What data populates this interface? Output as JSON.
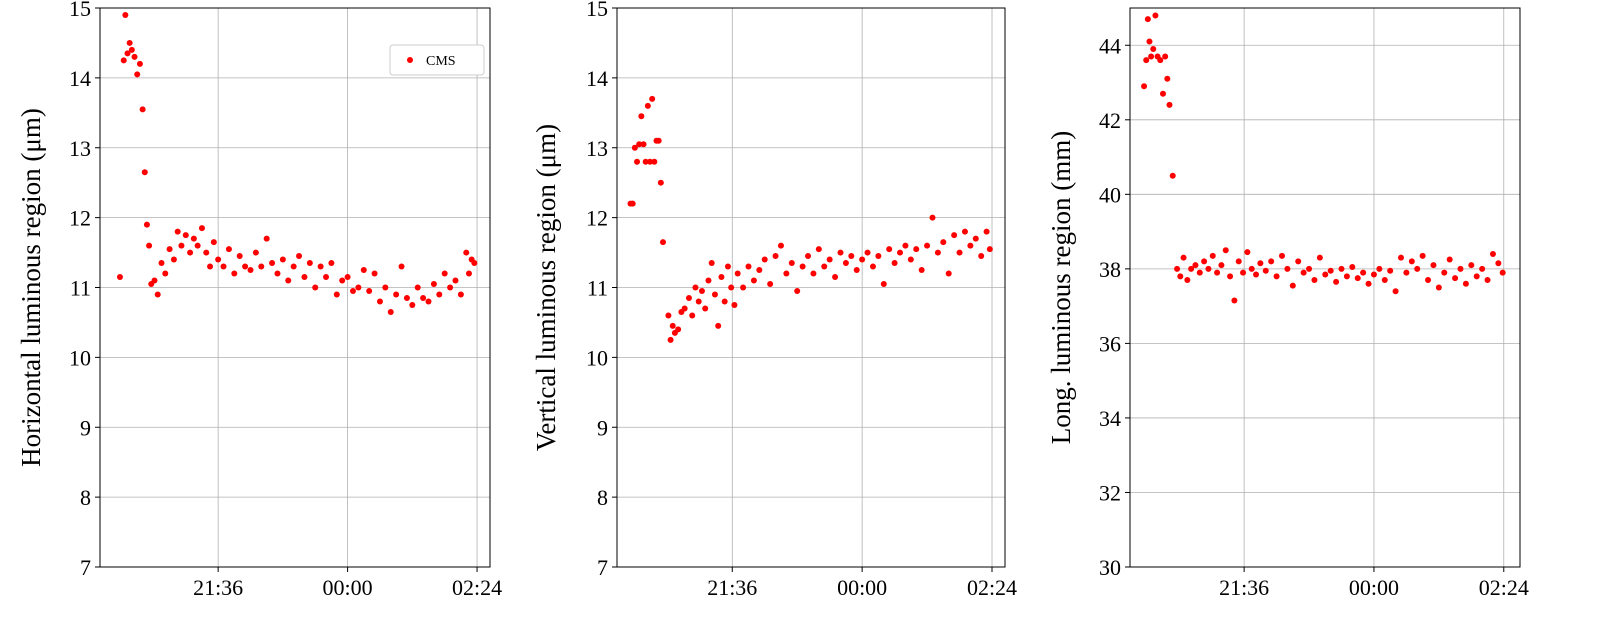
{
  "chart_data": [
    {
      "type": "scatter",
      "y_label": "Horizontal luminous region (μm)",
      "xlim": [
        19.41,
        26.64
      ],
      "ylim": [
        7,
        15
      ],
      "xticks": [
        {
          "value": 21.6,
          "label": "21:36"
        },
        {
          "value": 24,
          "label": "00:00"
        },
        {
          "value": 26.4,
          "label": "02:24"
        }
      ],
      "yticks": [
        7,
        8,
        9,
        10,
        11,
        12,
        13,
        14,
        15
      ],
      "grid": true,
      "legend": "upper right",
      "x": [
        19.78,
        19.85,
        19.88,
        19.92,
        19.96,
        20.0,
        20.05,
        20.1,
        20.15,
        20.2,
        20.24,
        20.28,
        20.32,
        20.36,
        20.42,
        20.48,
        20.55,
        20.62,
        20.7,
        20.78,
        20.85,
        20.92,
        21.0,
        21.08,
        21.15,
        21.22,
        21.3,
        21.38,
        21.45,
        21.52,
        21.6,
        21.7,
        21.8,
        21.9,
        22.0,
        22.1,
        22.2,
        22.3,
        22.4,
        22.5,
        22.6,
        22.7,
        22.8,
        22.9,
        23.0,
        23.1,
        23.2,
        23.3,
        23.4,
        23.5,
        23.6,
        23.7,
        23.8,
        23.9,
        24.0,
        24.1,
        24.2,
        24.3,
        24.4,
        24.5,
        24.6,
        24.7,
        24.8,
        24.9,
        25.0,
        25.1,
        25.2,
        25.3,
        25.4,
        25.5,
        25.6,
        25.7,
        25.8,
        25.9,
        26.0,
        26.1,
        26.2,
        26.25,
        26.3,
        26.35
      ],
      "series": [
        {
          "name": "CMS",
          "color": "#ff0000",
          "values": [
            11.15,
            14.25,
            14.9,
            14.35,
            14.5,
            14.4,
            14.3,
            14.05,
            14.2,
            13.55,
            12.65,
            11.9,
            11.6,
            11.05,
            11.1,
            10.9,
            11.35,
            11.2,
            11.55,
            11.4,
            11.8,
            11.6,
            11.75,
            11.5,
            11.7,
            11.6,
            11.85,
            11.5,
            11.3,
            11.65,
            11.4,
            11.3,
            11.55,
            11.2,
            11.45,
            11.3,
            11.25,
            11.5,
            11.3,
            11.7,
            11.35,
            11.2,
            11.4,
            11.1,
            11.3,
            11.45,
            11.15,
            11.35,
            11.0,
            11.3,
            11.15,
            11.35,
            10.9,
            11.1,
            11.15,
            10.95,
            11.0,
            11.25,
            10.95,
            11.2,
            10.8,
            11.0,
            10.65,
            10.9,
            11.3,
            10.85,
            10.75,
            11.0,
            10.85,
            10.8,
            11.05,
            10.9,
            11.2,
            11.0,
            11.1,
            10.9,
            11.5,
            11.2,
            11.4,
            11.35
          ]
        }
      ]
    },
    {
      "type": "scatter",
      "y_label": "Vertical luminous region (μm)",
      "xlim": [
        19.47,
        26.64
      ],
      "ylim": [
        7,
        15
      ],
      "xticks": [
        {
          "value": 21.6,
          "label": "21:36"
        },
        {
          "value": 24,
          "label": "00:00"
        },
        {
          "value": 26.4,
          "label": "02:24"
        }
      ],
      "yticks": [
        7,
        8,
        9,
        10,
        11,
        12,
        13,
        14,
        15
      ],
      "grid": true,
      "x": [
        19.72,
        19.76,
        19.8,
        19.84,
        19.88,
        19.92,
        19.96,
        20.0,
        20.04,
        20.08,
        20.12,
        20.16,
        20.2,
        20.24,
        20.28,
        20.32,
        20.42,
        20.46,
        20.5,
        20.54,
        20.6,
        20.66,
        20.72,
        20.8,
        20.86,
        20.92,
        20.98,
        21.04,
        21.1,
        21.16,
        21.22,
        21.28,
        21.34,
        21.4,
        21.46,
        21.52,
        21.58,
        21.64,
        21.7,
        21.8,
        21.9,
        22.0,
        22.1,
        22.2,
        22.3,
        22.4,
        22.5,
        22.6,
        22.7,
        22.8,
        22.9,
        23.0,
        23.1,
        23.2,
        23.3,
        23.4,
        23.5,
        23.6,
        23.7,
        23.8,
        23.9,
        24.0,
        24.1,
        24.2,
        24.3,
        24.4,
        24.5,
        24.6,
        24.7,
        24.8,
        24.9,
        25.0,
        25.1,
        25.2,
        25.3,
        25.4,
        25.5,
        25.6,
        25.7,
        25.8,
        25.9,
        26.0,
        26.1,
        26.2,
        26.3,
        26.36
      ],
      "series": [
        {
          "color": "#ff0000",
          "values": [
            12.2,
            12.2,
            13.0,
            12.8,
            13.05,
            13.45,
            13.05,
            12.8,
            13.6,
            12.8,
            13.7,
            12.8,
            13.1,
            13.1,
            12.5,
            11.65,
            10.6,
            10.25,
            10.45,
            10.35,
            10.4,
            10.65,
            10.7,
            10.85,
            10.6,
            11.0,
            10.8,
            10.95,
            10.7,
            11.1,
            11.35,
            10.9,
            10.45,
            11.15,
            10.8,
            11.3,
            11.0,
            10.75,
            11.2,
            11.0,
            11.3,
            11.1,
            11.25,
            11.4,
            11.05,
            11.45,
            11.6,
            11.2,
            11.35,
            10.95,
            11.3,
            11.45,
            11.2,
            11.55,
            11.3,
            11.4,
            11.15,
            11.5,
            11.35,
            11.45,
            11.25,
            11.4,
            11.5,
            11.3,
            11.45,
            11.05,
            11.55,
            11.35,
            11.5,
            11.6,
            11.4,
            11.55,
            11.25,
            11.6,
            12.0,
            11.5,
            11.65,
            11.2,
            11.75,
            11.5,
            11.8,
            11.6,
            11.7,
            11.45,
            11.8,
            11.55
          ]
        }
      ]
    },
    {
      "type": "scatter",
      "y_label": "Long. luminous region (mm)",
      "xlim": [
        19.49,
        26.7
      ],
      "ylim": [
        30,
        45
      ],
      "xticks": [
        {
          "value": 21.6,
          "label": "21:36"
        },
        {
          "value": 24,
          "label": "00:00"
        },
        {
          "value": 26.4,
          "label": "02:24"
        }
      ],
      "yticks": [
        30,
        32,
        34,
        36,
        38,
        40,
        42,
        44
      ],
      "grid": true,
      "x": [
        19.75,
        19.79,
        19.82,
        19.85,
        19.88,
        19.92,
        19.96,
        20.0,
        20.05,
        20.1,
        20.14,
        20.18,
        20.22,
        20.28,
        20.36,
        20.42,
        20.48,
        20.55,
        20.62,
        20.7,
        20.78,
        20.86,
        20.94,
        21.02,
        21.1,
        21.18,
        21.26,
        21.34,
        21.42,
        21.5,
        21.58,
        21.66,
        21.74,
        21.82,
        21.9,
        22.0,
        22.1,
        22.2,
        22.3,
        22.4,
        22.5,
        22.6,
        22.7,
        22.8,
        22.9,
        23.0,
        23.1,
        23.2,
        23.3,
        23.4,
        23.5,
        23.6,
        23.7,
        23.8,
        23.9,
        24.0,
        24.1,
        24.2,
        24.3,
        24.4,
        24.5,
        24.6,
        24.7,
        24.8,
        24.9,
        25.0,
        25.1,
        25.2,
        25.3,
        25.4,
        25.5,
        25.6,
        25.7,
        25.8,
        25.9,
        26.0,
        26.1,
        26.2,
        26.3,
        26.38
      ],
      "series": [
        {
          "color": "#ff0000",
          "values": [
            42.9,
            43.6,
            44.7,
            44.1,
            43.7,
            43.9,
            44.8,
            43.7,
            43.6,
            42.7,
            43.7,
            43.1,
            42.4,
            40.5,
            38.0,
            37.8,
            38.3,
            37.7,
            38.0,
            38.1,
            37.9,
            38.2,
            38.0,
            38.35,
            37.9,
            38.1,
            38.5,
            37.8,
            37.15,
            38.2,
            37.9,
            38.45,
            38.0,
            37.85,
            38.15,
            37.95,
            38.2,
            37.8,
            38.35,
            38.0,
            37.55,
            38.2,
            37.9,
            38.0,
            37.7,
            38.3,
            37.85,
            37.95,
            37.65,
            38.0,
            37.8,
            38.05,
            37.75,
            37.9,
            37.6,
            37.85,
            38.0,
            37.7,
            37.95,
            37.4,
            38.3,
            37.9,
            38.2,
            38.0,
            38.35,
            37.7,
            38.1,
            37.5,
            37.9,
            38.25,
            37.75,
            38.0,
            37.6,
            38.1,
            37.8,
            38.0,
            37.7,
            38.4,
            38.15,
            37.9
          ]
        }
      ]
    }
  ]
}
